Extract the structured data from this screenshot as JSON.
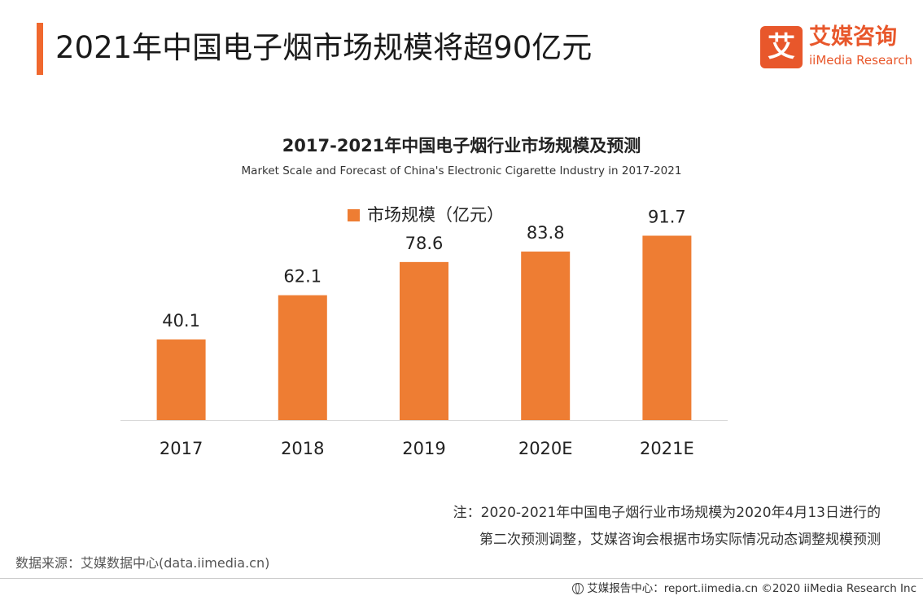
{
  "header": {
    "title": "2021年中国电子烟市场规模将超90亿元"
  },
  "brand": {
    "mark": "艾",
    "name_cn": "艾媒咨询",
    "name_en": "iiMedia Research",
    "color": "#e8572b"
  },
  "chart_data": {
    "type": "bar",
    "title": "2017-2021年中国电子烟行业市场规模及预测",
    "subtitle": "Market Scale and Forecast of China's Electronic Cigarette Industry in 2017-2021",
    "categories": [
      "2017",
      "2018",
      "2019",
      "2020E",
      "2021E"
    ],
    "series": [
      {
        "name": "市场规模（亿元）",
        "values": [
          40.1,
          62.1,
          78.6,
          83.8,
          91.7
        ],
        "color": "#ee7d33"
      }
    ],
    "data_labels": [
      "40.1",
      "62.1",
      "78.6",
      "83.8",
      "91.7"
    ],
    "ylim": [
      0,
      100
    ],
    "grid": false,
    "legend_position": "top-center",
    "xlabel": "",
    "ylabel": ""
  },
  "note": {
    "line1": "注：2020-2021年中国电子烟行业市场规模为2020年4月13日进行的",
    "line2": "第二次预测调整，艾媒咨询会根据市场实际情况动态调整规模预测"
  },
  "source": "数据来源：艾媒数据中心(data.iimedia.cn)",
  "footer": "艾媒报告中心：report.iimedia.cn  ©2020  iiMedia Research  Inc"
}
